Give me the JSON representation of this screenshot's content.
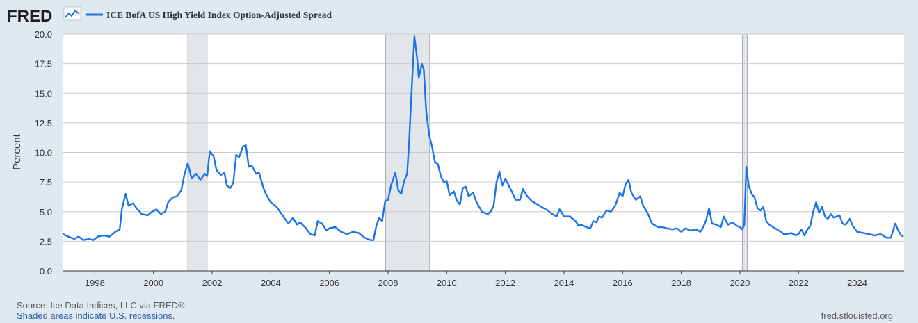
{
  "brand": {
    "logo_text": "FRED"
  },
  "footer": {
    "source": "Source: Ice Data Indices, LLC via FRED®",
    "note": "Shaded areas indicate U.S. recessions.",
    "site": "fred.stlouisfed.org"
  },
  "colors": {
    "series": "#1a73e8",
    "recession": "#e2e6ea",
    "background": "#e1e9f0",
    "plot": "#ffffff",
    "grid": "#c9c9c9",
    "logo": "#1f1f1f"
  },
  "chart_data": {
    "type": "line",
    "title": "",
    "xlabel": "",
    "ylabel": "Percent",
    "legend": {
      "placement": "top-left",
      "entries": [
        "ICE BofA US High Yield Index Option-Adjusted Spread"
      ]
    },
    "grid": true,
    "xlim": [
      1996.9,
      2025.6
    ],
    "ylim": [
      0,
      20
    ],
    "yticks": [
      "0.0",
      "2.5",
      "5.0",
      "7.5",
      "10.0",
      "12.5",
      "15.0",
      "17.5",
      "20.0"
    ],
    "xticks": [
      "1998",
      "2000",
      "2002",
      "2004",
      "2006",
      "2008",
      "2010",
      "2012",
      "2014",
      "2016",
      "2018",
      "2020",
      "2022",
      "2024"
    ],
    "recessions": [
      [
        2001.17,
        2001.83
      ],
      [
        2007.92,
        2009.42
      ],
      [
        2020.08,
        2020.25
      ]
    ],
    "series": [
      {
        "name": "ICE BofA US High Yield Index Option-Adjusted Spread",
        "points": [
          [
            1996.92,
            3.1
          ],
          [
            1997.1,
            2.9
          ],
          [
            1997.3,
            2.7
          ],
          [
            1997.45,
            2.9
          ],
          [
            1997.6,
            2.6
          ],
          [
            1997.8,
            2.7
          ],
          [
            1997.95,
            2.6
          ],
          [
            1998.1,
            2.9
          ],
          [
            1998.3,
            3.0
          ],
          [
            1998.5,
            2.9
          ],
          [
            1998.7,
            3.3
          ],
          [
            1998.85,
            3.5
          ],
          [
            1998.92,
            5.2
          ],
          [
            1999.05,
            6.5
          ],
          [
            1999.15,
            5.5
          ],
          [
            1999.3,
            5.7
          ],
          [
            1999.45,
            5.2
          ],
          [
            1999.6,
            4.8
          ],
          [
            1999.8,
            4.7
          ],
          [
            1999.95,
            5.0
          ],
          [
            2000.1,
            5.2
          ],
          [
            2000.25,
            4.8
          ],
          [
            2000.4,
            5.0
          ],
          [
            2000.5,
            5.8
          ],
          [
            2000.65,
            6.2
          ],
          [
            2000.8,
            6.3
          ],
          [
            2000.95,
            6.8
          ],
          [
            2001.05,
            8.1
          ],
          [
            2001.17,
            9.1
          ],
          [
            2001.3,
            7.8
          ],
          [
            2001.45,
            8.2
          ],
          [
            2001.6,
            7.7
          ],
          [
            2001.75,
            8.2
          ],
          [
            2001.83,
            8.0
          ],
          [
            2001.92,
            10.1
          ],
          [
            2002.05,
            9.7
          ],
          [
            2002.15,
            8.5
          ],
          [
            2002.3,
            8.1
          ],
          [
            2002.42,
            8.3
          ],
          [
            2002.5,
            7.2
          ],
          [
            2002.62,
            7.0
          ],
          [
            2002.72,
            7.4
          ],
          [
            2002.82,
            9.8
          ],
          [
            2002.92,
            9.6
          ],
          [
            2003.05,
            10.5
          ],
          [
            2003.15,
            10.6
          ],
          [
            2003.25,
            8.8
          ],
          [
            2003.35,
            8.9
          ],
          [
            2003.5,
            8.2
          ],
          [
            2003.6,
            8.3
          ],
          [
            2003.75,
            7.0
          ],
          [
            2003.85,
            6.4
          ],
          [
            2004.0,
            5.8
          ],
          [
            2004.2,
            5.4
          ],
          [
            2004.4,
            4.7
          ],
          [
            2004.6,
            4.0
          ],
          [
            2004.75,
            4.5
          ],
          [
            2004.9,
            3.9
          ],
          [
            2005.0,
            4.1
          ],
          [
            2005.2,
            3.6
          ],
          [
            2005.35,
            3.1
          ],
          [
            2005.5,
            3.0
          ],
          [
            2005.6,
            4.2
          ],
          [
            2005.75,
            4.0
          ],
          [
            2005.9,
            3.4
          ],
          [
            2006.0,
            3.6
          ],
          [
            2006.2,
            3.7
          ],
          [
            2006.4,
            3.3
          ],
          [
            2006.6,
            3.1
          ],
          [
            2006.8,
            3.3
          ],
          [
            2007.0,
            3.2
          ],
          [
            2007.2,
            2.8
          ],
          [
            2007.4,
            2.6
          ],
          [
            2007.5,
            2.6
          ],
          [
            2007.6,
            3.8
          ],
          [
            2007.7,
            4.5
          ],
          [
            2007.8,
            4.2
          ],
          [
            2007.9,
            5.9
          ],
          [
            2008.0,
            6.0
          ],
          [
            2008.1,
            7.2
          ],
          [
            2008.25,
            8.3
          ],
          [
            2008.35,
            6.8
          ],
          [
            2008.45,
            6.5
          ],
          [
            2008.55,
            7.6
          ],
          [
            2008.65,
            8.2
          ],
          [
            2008.72,
            10.9
          ],
          [
            2008.8,
            15.0
          ],
          [
            2008.9,
            19.8
          ],
          [
            2009.0,
            17.8
          ],
          [
            2009.05,
            16.3
          ],
          [
            2009.15,
            17.5
          ],
          [
            2009.22,
            17.0
          ],
          [
            2009.3,
            13.5
          ],
          [
            2009.4,
            11.5
          ],
          [
            2009.5,
            10.5
          ],
          [
            2009.6,
            9.2
          ],
          [
            2009.7,
            9.0
          ],
          [
            2009.8,
            8.0
          ],
          [
            2009.9,
            7.5
          ],
          [
            2010.0,
            7.6
          ],
          [
            2010.1,
            6.4
          ],
          [
            2010.25,
            6.7
          ],
          [
            2010.35,
            5.9
          ],
          [
            2010.45,
            5.6
          ],
          [
            2010.55,
            7.0
          ],
          [
            2010.65,
            7.1
          ],
          [
            2010.75,
            6.3
          ],
          [
            2010.9,
            6.6
          ],
          [
            2011.0,
            5.9
          ],
          [
            2011.2,
            5.0
          ],
          [
            2011.4,
            4.8
          ],
          [
            2011.5,
            5.0
          ],
          [
            2011.6,
            5.5
          ],
          [
            2011.7,
            7.5
          ],
          [
            2011.8,
            8.4
          ],
          [
            2011.9,
            7.2
          ],
          [
            2012.0,
            7.8
          ],
          [
            2012.2,
            6.8
          ],
          [
            2012.35,
            6.0
          ],
          [
            2012.5,
            6.0
          ],
          [
            2012.6,
            6.9
          ],
          [
            2012.75,
            6.3
          ],
          [
            2012.9,
            5.9
          ],
          [
            2013.1,
            5.6
          ],
          [
            2013.3,
            5.3
          ],
          [
            2013.45,
            5.1
          ],
          [
            2013.6,
            4.8
          ],
          [
            2013.75,
            4.6
          ],
          [
            2013.85,
            5.2
          ],
          [
            2014.0,
            4.6
          ],
          [
            2014.2,
            4.6
          ],
          [
            2014.4,
            4.2
          ],
          [
            2014.5,
            3.8
          ],
          [
            2014.6,
            3.9
          ],
          [
            2014.75,
            3.7
          ],
          [
            2014.9,
            3.6
          ],
          [
            2015.0,
            4.2
          ],
          [
            2015.1,
            4.1
          ],
          [
            2015.2,
            4.6
          ],
          [
            2015.3,
            4.5
          ],
          [
            2015.45,
            5.1
          ],
          [
            2015.6,
            5.0
          ],
          [
            2015.75,
            5.5
          ],
          [
            2015.9,
            6.6
          ],
          [
            2016.0,
            6.3
          ],
          [
            2016.1,
            7.3
          ],
          [
            2016.2,
            7.7
          ],
          [
            2016.3,
            6.6
          ],
          [
            2016.45,
            6.0
          ],
          [
            2016.6,
            6.3
          ],
          [
            2016.7,
            5.5
          ],
          [
            2016.85,
            4.9
          ],
          [
            2017.0,
            4.0
          ],
          [
            2017.2,
            3.7
          ],
          [
            2017.35,
            3.7
          ],
          [
            2017.5,
            3.6
          ],
          [
            2017.7,
            3.5
          ],
          [
            2017.85,
            3.6
          ],
          [
            2018.0,
            3.3
          ],
          [
            2018.15,
            3.6
          ],
          [
            2018.3,
            3.4
          ],
          [
            2018.5,
            3.5
          ],
          [
            2018.65,
            3.3
          ],
          [
            2018.75,
            3.7
          ],
          [
            2018.85,
            4.3
          ],
          [
            2018.95,
            5.3
          ],
          [
            2019.05,
            4.0
          ],
          [
            2019.2,
            3.9
          ],
          [
            2019.35,
            3.7
          ],
          [
            2019.45,
            4.6
          ],
          [
            2019.6,
            3.9
          ],
          [
            2019.75,
            4.1
          ],
          [
            2019.9,
            3.8
          ],
          [
            2020.0,
            3.7
          ],
          [
            2020.08,
            3.5
          ],
          [
            2020.15,
            3.9
          ],
          [
            2020.22,
            8.8
          ],
          [
            2020.3,
            7.2
          ],
          [
            2020.4,
            6.5
          ],
          [
            2020.5,
            6.2
          ],
          [
            2020.6,
            5.3
          ],
          [
            2020.7,
            5.1
          ],
          [
            2020.8,
            5.4
          ],
          [
            2020.9,
            4.2
          ],
          [
            2021.0,
            3.9
          ],
          [
            2021.2,
            3.6
          ],
          [
            2021.4,
            3.3
          ],
          [
            2021.5,
            3.1
          ],
          [
            2021.6,
            3.1
          ],
          [
            2021.75,
            3.2
          ],
          [
            2021.9,
            3.0
          ],
          [
            2022.0,
            3.1
          ],
          [
            2022.1,
            3.5
          ],
          [
            2022.2,
            3.0
          ],
          [
            2022.3,
            3.5
          ],
          [
            2022.4,
            3.8
          ],
          [
            2022.5,
            5.0
          ],
          [
            2022.6,
            5.8
          ],
          [
            2022.7,
            4.9
          ],
          [
            2022.8,
            5.4
          ],
          [
            2022.9,
            4.6
          ],
          [
            2023.0,
            4.4
          ],
          [
            2023.1,
            4.8
          ],
          [
            2023.2,
            4.5
          ],
          [
            2023.3,
            4.6
          ],
          [
            2023.4,
            4.7
          ],
          [
            2023.5,
            4.0
          ],
          [
            2023.6,
            3.9
          ],
          [
            2023.75,
            4.4
          ],
          [
            2023.85,
            3.8
          ],
          [
            2024.0,
            3.3
          ],
          [
            2024.2,
            3.2
          ],
          [
            2024.4,
            3.1
          ],
          [
            2024.6,
            3.0
          ],
          [
            2024.8,
            3.1
          ],
          [
            2025.0,
            2.8
          ],
          [
            2025.15,
            2.8
          ],
          [
            2025.25,
            3.6
          ],
          [
            2025.3,
            4.0
          ],
          [
            2025.4,
            3.4
          ],
          [
            2025.5,
            3.0
          ],
          [
            2025.58,
            2.9
          ]
        ]
      }
    ]
  }
}
